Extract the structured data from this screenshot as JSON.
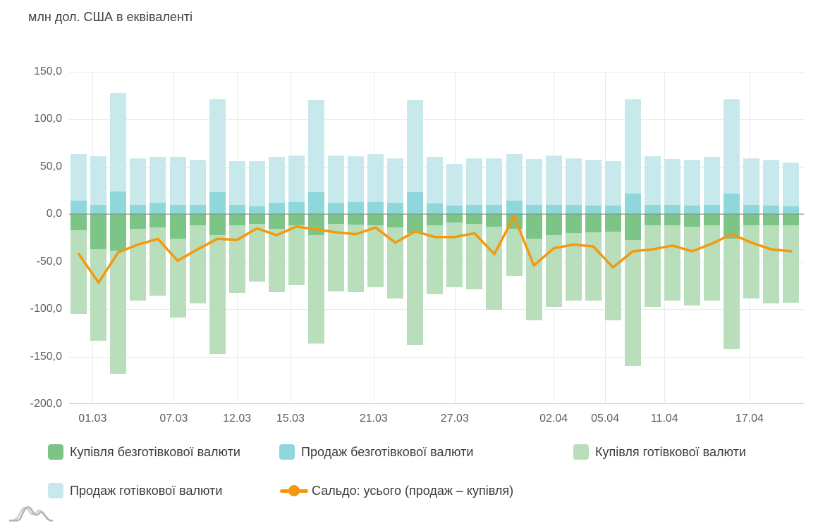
{
  "header": {
    "title": "млн дол. США в еквіваленті"
  },
  "colors": {
    "buy_noncash": "#7dc487",
    "sell_noncash": "#8fd7db",
    "buy_cash": "#b9debc",
    "sell_cash": "#c7e9ec",
    "balance_line": "#f6980e",
    "grid": "#e9e9e9",
    "zero_line": "#9e9e9e",
    "axis_text": "#5f5f5f",
    "title_text": "#424242",
    "legend_text": "#3c3c3c",
    "logo_gray": "#b3b3b3"
  },
  "y_axis": {
    "tick_labels": [
      "150,0",
      "100,0",
      "50,0",
      "0,0",
      "-50,0",
      "-100,0",
      "-150,0",
      "-200,0"
    ],
    "tick_values": [
      150,
      100,
      50,
      0,
      -50,
      -100,
      -150,
      -200
    ]
  },
  "x_axis": {
    "tick_labels": [
      "01.03",
      "07.03",
      "12.03",
      "15.03",
      "21.03",
      "27.03",
      "02.04",
      "05.04",
      "11.04",
      "17.04"
    ],
    "tick_bar_positions": [
      1.7,
      5.8,
      9.0,
      11.7,
      15.9,
      20.0,
      25.0,
      27.6,
      30.6,
      34.9
    ]
  },
  "legend": {
    "items": [
      {
        "label": "Купівля безготівкової валюти",
        "color": "#7dc487",
        "marker": "box"
      },
      {
        "label": "Продаж безготівкової валюти",
        "color": "#8fd7db",
        "marker": "box"
      },
      {
        "label": "Купівля готівкової валюти",
        "color": "#b9debc",
        "marker": "box"
      },
      {
        "label": "Продаж готівкової валюти",
        "color": "#c7e9ec",
        "marker": "box"
      },
      {
        "label": "Сальдо: усього (продаж – купівля)",
        "color": "#f6980e",
        "marker": "line-dot"
      }
    ]
  },
  "chart_data": {
    "type": "bar",
    "stacked": true,
    "units": "млн дол. США в еквіваленті",
    "bar_count": 37,
    "ylim": [
      -200,
      150
    ],
    "grid": true,
    "legend_position": "bottom",
    "x_tick_labels": [
      "01.03",
      "07.03",
      "12.03",
      "15.03",
      "21.03",
      "27.03",
      "02.04",
      "05.04",
      "11.04",
      "17.04"
    ],
    "series": [
      {
        "name": "Купівля безготівкової валюти",
        "type": "bar",
        "color": "#7dc487",
        "values": [
          -17,
          -37,
          -38,
          -15,
          -14,
          -26,
          -12,
          -22,
          -12,
          -10,
          -15,
          -12,
          -22,
          -10,
          -11,
          -12,
          -14,
          -20,
          -12,
          -9,
          -10,
          -13,
          -15,
          -26,
          -22,
          -20,
          -19,
          -18,
          -27,
          -12,
          -12,
          -13,
          -12,
          -26,
          -12,
          -12,
          -12
        ]
      },
      {
        "name": "Продаж безготівкової валюти",
        "type": "bar",
        "color": "#8fd7db",
        "values": [
          14,
          10,
          24,
          10,
          12,
          10,
          10,
          23,
          10,
          8,
          12,
          13,
          23,
          12,
          13,
          13,
          12,
          23,
          11,
          9,
          10,
          10,
          14,
          10,
          10,
          10,
          9,
          9,
          22,
          10,
          10,
          9,
          10,
          22,
          10,
          9,
          8
        ]
      },
      {
        "name": "Купівля готівкової валюти",
        "type": "bar",
        "color": "#b9debc",
        "values": [
          -88,
          -96,
          -130,
          -76,
          -72,
          -83,
          -82,
          -125,
          -71,
          -61,
          -67,
          -63,
          -114,
          -71,
          -71,
          -65,
          -75,
          -118,
          -72,
          -68,
          -69,
          -88,
          -50,
          -86,
          -76,
          -71,
          -72,
          -94,
          -133,
          -86,
          -79,
          -83,
          -79,
          -116,
          -77,
          -82,
          -81
        ]
      },
      {
        "name": "Продаж готівкової валюти",
        "type": "bar",
        "color": "#c7e9ec",
        "values": [
          49,
          51,
          104,
          49,
          48,
          50,
          47,
          98,
          46,
          48,
          48,
          49,
          97,
          50,
          48,
          50,
          47,
          97,
          49,
          44,
          49,
          49,
          49,
          48,
          52,
          49,
          48,
          47,
          99,
          51,
          48,
          48,
          50,
          99,
          49,
          48,
          46
        ]
      },
      {
        "name": "Сальдо: усього (продаж – купівля)",
        "type": "line",
        "color": "#f6980e",
        "values": [
          -42,
          -72,
          -40,
          -32,
          -26,
          -49,
          -37,
          -26,
          -27,
          -15,
          -22,
          -13,
          -16,
          -19,
          -21,
          -14,
          -30,
          -18,
          -24,
          -24,
          -20,
          -42,
          -2,
          -54,
          -36,
          -32,
          -34,
          -56,
          -39,
          -37,
          -33,
          -39,
          -31,
          -21,
          -30,
          -37,
          -39
        ]
      }
    ]
  }
}
